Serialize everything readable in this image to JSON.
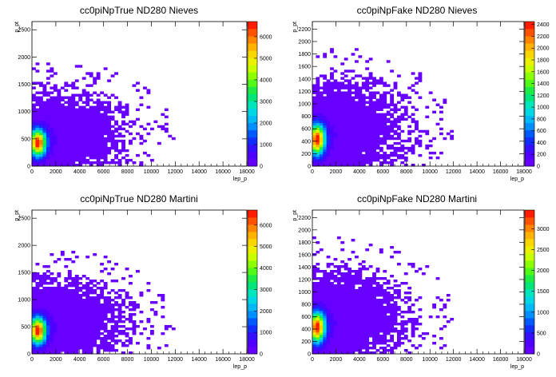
{
  "chart_data": [
    {
      "type": "heatmap",
      "title": "cc0piNpTrue ND280 Nieves",
      "xlabel": "lep_p",
      "ylabel": "p_pt",
      "xlim": [
        0,
        18000
      ],
      "ylim": [
        0,
        2650
      ],
      "x_ticks": [
        "0",
        "2000",
        "4000",
        "6000",
        "8000",
        "10000",
        "12000",
        "14000",
        "16000",
        "18000"
      ],
      "x_tick_values": [
        0,
        2000,
        4000,
        6000,
        8000,
        10000,
        12000,
        14000,
        16000,
        18000
      ],
      "y_ticks": [
        "0",
        "500",
        "1000",
        "1500",
        "2000",
        "2500"
      ],
      "y_tick_values": [
        0,
        500,
        1000,
        1500,
        2000,
        2500
      ],
      "z_ticks": [
        "0",
        "1000",
        "2000",
        "3000",
        "4000",
        "5000",
        "6000"
      ],
      "z_tick_values": [
        0,
        1000,
        2000,
        3000,
        4000,
        5000,
        6000
      ],
      "zmax": 6700,
      "peak": {
        "x": 500,
        "y": 430,
        "z": 6500
      }
    },
    {
      "type": "heatmap",
      "title": "cc0piNpFake ND280 Nieves",
      "xlabel": "lep_p",
      "ylabel": "p_pt",
      "xlim": [
        0,
        18000
      ],
      "ylim": [
        0,
        2320
      ],
      "x_ticks": [
        "0",
        "2000",
        "4000",
        "6000",
        "8000",
        "10000",
        "12000",
        "14000",
        "16000",
        "18000"
      ],
      "x_tick_values": [
        0,
        2000,
        4000,
        6000,
        8000,
        10000,
        12000,
        14000,
        16000,
        18000
      ],
      "y_ticks": [
        "0",
        "200",
        "400",
        "600",
        "800",
        "1000",
        "1200",
        "1400",
        "1600",
        "1800",
        "2000",
        "2200"
      ],
      "y_tick_values": [
        0,
        200,
        400,
        600,
        800,
        1000,
        1200,
        1400,
        1600,
        1800,
        2000,
        2200
      ],
      "z_ticks": [
        "0",
        "200",
        "400",
        "600",
        "800",
        "1000",
        "1200",
        "1400",
        "1600",
        "1800",
        "2000",
        "2200",
        "2400"
      ],
      "z_tick_values": [
        0,
        200,
        400,
        600,
        800,
        1000,
        1200,
        1400,
        1600,
        1800,
        2000,
        2200,
        2400
      ],
      "zmax": 2450,
      "peak": {
        "x": 400,
        "y": 430,
        "z": 2400
      }
    },
    {
      "type": "heatmap",
      "title": "cc0piNpTrue ND280 Martini",
      "xlabel": "lep_p",
      "ylabel": "p_pt",
      "xlim": [
        0,
        18000
      ],
      "ylim": [
        0,
        2650
      ],
      "x_ticks": [
        "0",
        "2000",
        "4000",
        "6000",
        "8000",
        "10000",
        "12000",
        "14000",
        "16000",
        "18000"
      ],
      "x_tick_values": [
        0,
        2000,
        4000,
        6000,
        8000,
        10000,
        12000,
        14000,
        16000,
        18000
      ],
      "y_ticks": [
        "0",
        "500",
        "1000",
        "1500",
        "2000",
        "2500"
      ],
      "y_tick_values": [
        0,
        500,
        1000,
        1500,
        2000,
        2500
      ],
      "z_ticks": [
        "0",
        "1000",
        "2000",
        "3000",
        "4000",
        "5000",
        "6000"
      ],
      "z_tick_values": [
        0,
        1000,
        2000,
        3000,
        4000,
        5000,
        6000
      ],
      "zmax": 6700,
      "peak": {
        "x": 500,
        "y": 430,
        "z": 6500
      }
    },
    {
      "type": "heatmap",
      "title": "cc0piNpFake ND280 Martini",
      "xlabel": "lep_p",
      "ylabel": "p_pt",
      "xlim": [
        0,
        18000
      ],
      "ylim": [
        0,
        2320
      ],
      "x_ticks": [
        "0",
        "2000",
        "4000",
        "6000",
        "8000",
        "10000",
        "12000",
        "14000",
        "16000",
        "18000"
      ],
      "x_tick_values": [
        0,
        2000,
        4000,
        6000,
        8000,
        10000,
        12000,
        14000,
        16000,
        18000
      ],
      "y_ticks": [
        "0",
        "200",
        "400",
        "600",
        "800",
        "1000",
        "1200",
        "1400",
        "1600",
        "1800",
        "2000",
        "2200"
      ],
      "y_tick_values": [
        0,
        200,
        400,
        600,
        800,
        1000,
        1200,
        1400,
        1600,
        1800,
        2000,
        2200
      ],
      "z_ticks": [
        "0",
        "500",
        "1000",
        "1500",
        "2000",
        "2500",
        "3000"
      ],
      "z_tick_values": [
        0,
        500,
        1000,
        1500,
        2000,
        2500,
        3000
      ],
      "zmax": 3450,
      "peak": {
        "x": 400,
        "y": 430,
        "z": 3400
      }
    }
  ]
}
